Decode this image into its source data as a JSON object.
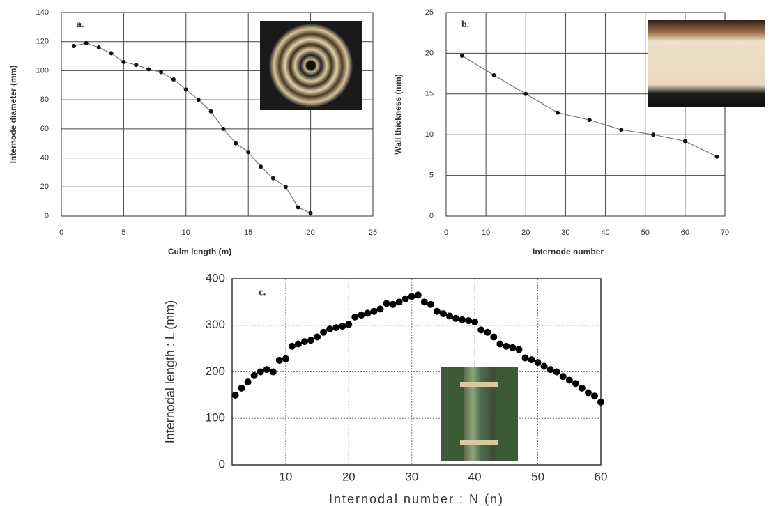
{
  "chart_data": [
    {
      "type": "line",
      "annotation": "a.",
      "xlabel": "Culm length (m)",
      "ylabel": "Internode diameter (mm)",
      "x": [
        1,
        2,
        3,
        4,
        5,
        6,
        7,
        8,
        9,
        10,
        11,
        12,
        13,
        14,
        15,
        16,
        17,
        18,
        19,
        20
      ],
      "values": [
        117,
        119,
        116,
        112,
        106,
        104,
        101,
        99,
        94,
        87,
        80,
        72,
        60,
        50,
        44,
        34,
        26,
        20,
        6,
        2
      ],
      "color": "#111111",
      "xlim": [
        0,
        25
      ],
      "xticks": [
        0,
        5,
        10,
        15,
        20,
        25
      ],
      "ylim": [
        0,
        140
      ],
      "yticks": [
        0,
        20,
        40,
        60,
        80,
        100,
        120,
        140
      ],
      "grid": "solid"
    },
    {
      "type": "line",
      "annotation": "b.",
      "xlabel": "Internode number",
      "ylabel": "Wall thickness (mm)",
      "x": [
        4,
        12,
        20,
        28,
        36,
        44,
        52,
        60,
        68
      ],
      "values": [
        19.7,
        17.3,
        15,
        12.7,
        11.8,
        10.6,
        10,
        9.2,
        7.3
      ],
      "color": "#111111",
      "xlim": [
        0,
        70
      ],
      "xticks": [
        0,
        10,
        20,
        30,
        40,
        50,
        60,
        70
      ],
      "ylim": [
        0,
        25
      ],
      "yticks": [
        0,
        5,
        10,
        15,
        20,
        25
      ],
      "grid": "solid"
    },
    {
      "type": "scatter",
      "annotation": "c.",
      "xlabel": "Internodal number : N (n)",
      "ylabel": "Internodal length : L (mm)",
      "x": [
        2,
        3,
        4,
        5,
        6,
        7,
        8,
        9,
        10,
        11,
        12,
        13,
        14,
        15,
        16,
        17,
        18,
        19,
        20,
        21,
        22,
        23,
        24,
        25,
        26,
        27,
        28,
        29,
        30,
        31,
        32,
        33,
        34,
        35,
        36,
        37,
        38,
        39,
        40,
        41,
        42,
        43,
        44,
        45,
        46,
        47,
        48,
        49,
        50,
        51,
        52,
        53,
        54,
        55,
        56,
        57,
        58,
        59,
        60
      ],
      "values": [
        150,
        165,
        178,
        192,
        200,
        205,
        200,
        225,
        228,
        255,
        260,
        265,
        268,
        275,
        285,
        292,
        295,
        298,
        302,
        318,
        322,
        326,
        330,
        335,
        347,
        345,
        350,
        357,
        362,
        365,
        350,
        345,
        330,
        325,
        320,
        315,
        312,
        310,
        307,
        290,
        285,
        275,
        260,
        255,
        252,
        248,
        230,
        226,
        220,
        212,
        205,
        200,
        190,
        182,
        175,
        165,
        155,
        148,
        135
      ],
      "color": "#000000",
      "xlim": [
        1.5,
        60
      ],
      "xticks": [
        10,
        20,
        30,
        40,
        50,
        60
      ],
      "ylim": [
        0,
        400
      ],
      "yticks": [
        0,
        100,
        200,
        300,
        400
      ],
      "grid": "dotted"
    }
  ]
}
